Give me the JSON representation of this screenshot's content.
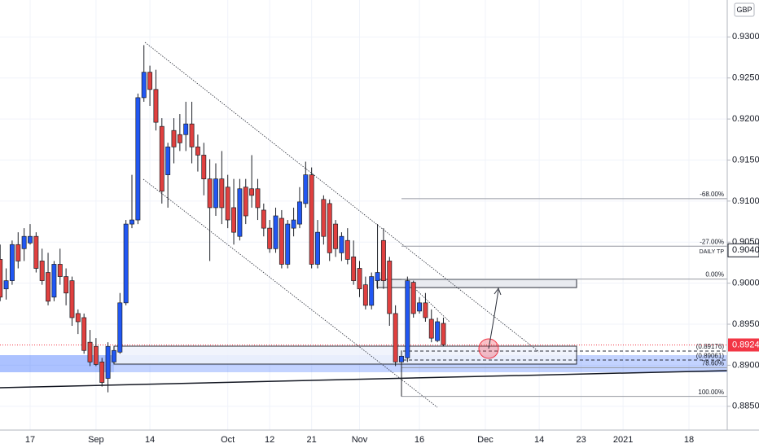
{
  "chart_data": {
    "type": "candlestick",
    "currency": "GBP",
    "up_color": "#2157f3",
    "down_color": "#e0403f",
    "grid": true,
    "ylim": [
      0.8821,
      0.9345
    ],
    "yticks": [
      {
        "value": 0.885,
        "label": "0.88500"
      },
      {
        "value": 0.89,
        "label": "0.89000"
      },
      {
        "value": 0.895,
        "label": "0.89500"
      },
      {
        "value": 0.9,
        "label": "0.90000"
      },
      {
        "value": 0.905,
        "label": "0.90500"
      },
      {
        "value": 0.91,
        "label": "0.91000"
      },
      {
        "value": 0.915,
        "label": "0.91500"
      },
      {
        "value": 0.92,
        "label": "0.92000"
      },
      {
        "value": 0.925,
        "label": "0.92500"
      },
      {
        "value": 0.93,
        "label": "0.93000"
      }
    ],
    "categories": [
      null,
      null,
      null,
      null,
      null,
      "17",
      null,
      null,
      null,
      null,
      null,
      null,
      null,
      null,
      null,
      null,
      "Sep",
      null,
      null,
      null,
      null,
      null,
      null,
      null,
      null,
      "14",
      null,
      null,
      null,
      null,
      null,
      null,
      null,
      null,
      null,
      null,
      null,
      null,
      "Oct",
      null,
      null,
      null,
      null,
      null,
      null,
      "12",
      null,
      null,
      null,
      null,
      null,
      null,
      "21",
      null,
      null,
      null,
      null,
      null,
      null,
      null,
      "Nov",
      null,
      null,
      null,
      null,
      null,
      null,
      null,
      null,
      null,
      "16",
      null,
      null,
      null,
      null,
      null,
      null,
      null,
      null,
      null,
      null,
      "Dec",
      null,
      null,
      null,
      null,
      null,
      null,
      null,
      null,
      "14",
      null,
      null,
      null,
      null,
      null,
      null,
      "23",
      null,
      null,
      null,
      null,
      null,
      null,
      "2021",
      null,
      null,
      null,
      null,
      null,
      null,
      null,
      null,
      null,
      null,
      "18",
      null,
      null,
      null,
      null,
      null
    ],
    "open": [
      0.9029,
      0.8993,
      0.9003,
      0.9047,
      0.9042,
      0.9049,
      0.9057,
      0.9027,
      0.9013,
      0.8983,
      0.9023,
      0.9008,
      0.9003,
      0.8963,
      0.8958,
      0.8928,
      0.8923,
      0.8904,
      0.8884,
      0.8904,
      0.8916,
      0.8976,
      0.9072,
      0.9077,
      0.9226,
      0.9257,
      0.9236,
      0.9191,
      0.9132,
      0.9186,
      0.9181,
      0.9181,
      0.9194,
      0.9166,
      0.9156,
      0.9127,
      0.9092,
      0.9127,
      0.9117,
      0.9092,
      0.9057,
      0.9117,
      0.9115,
      0.9115,
      0.9089,
      0.9067,
      0.9042,
      0.9079,
      0.9023,
      0.9067,
      0.9072,
      0.9097,
      0.9132,
      0.9023,
      0.9102,
      0.9097,
      0.9072,
      0.9037,
      0.9052,
      0.9032,
      0.9018,
      0.8998,
      0.8973,
      0.9003,
      0.9052,
      0.9027,
      0.8963,
      0.8904,
      0.8909,
      0.9001,
      0.8966,
      0.8976,
      0.8956,
      0.893,
      0.8951,
      null,
      null,
      null,
      null,
      null,
      null,
      null,
      null,
      null,
      null,
      null,
      null,
      null,
      null,
      null,
      null,
      null,
      null,
      null,
      null,
      null,
      null,
      null,
      null,
      null,
      null,
      null,
      null,
      null,
      null,
      null,
      null,
      null,
      null,
      null,
      null,
      null,
      null,
      null,
      null,
      null,
      null,
      null,
      null,
      null,
      null
    ],
    "high": [
      0.9047,
      0.9018,
      0.9052,
      0.9062,
      0.9067,
      0.9072,
      0.9062,
      0.9042,
      0.9037,
      0.9027,
      0.9042,
      0.9018,
      0.9008,
      0.8968,
      0.8963,
      0.8943,
      0.8933,
      0.8909,
      0.8928,
      0.8923,
      0.8988,
      0.9077,
      0.9132,
      0.9231,
      0.929,
      0.9265,
      0.926,
      0.9201,
      0.9171,
      0.9201,
      0.9206,
      0.9221,
      0.9221,
      0.9181,
      0.9171,
      0.9151,
      0.9146,
      0.9161,
      0.9132,
      0.9127,
      0.9127,
      0.9127,
      0.9156,
      0.9127,
      0.9097,
      0.9077,
      0.9092,
      0.9089,
      0.9077,
      0.9092,
      0.9117,
      0.9148,
      0.9141,
      0.9077,
      0.9107,
      0.9102,
      0.9077,
      0.9062,
      0.9067,
      0.9052,
      0.9027,
      0.9008,
      0.9013,
      0.9072,
      0.9067,
      0.9032,
      0.8973,
      0.8918,
      0.9008,
      0.9003,
      0.8983,
      0.8988,
      0.8968,
      0.8958,
      0.8958,
      null,
      null,
      null,
      null,
      null,
      null,
      null,
      null,
      null,
      null,
      null,
      null,
      null,
      null,
      null,
      null,
      null,
      null,
      null,
      null,
      null,
      null,
      null,
      null,
      null,
      null,
      null,
      null,
      null,
      null,
      null,
      null,
      null,
      null,
      null,
      null,
      null,
      null,
      null,
      null,
      null,
      null,
      null,
      null,
      null,
      null
    ],
    "low": [
      0.8978,
      0.898,
      0.8998,
      0.9018,
      0.9027,
      0.9047,
      0.9013,
      0.8998,
      0.8973,
      0.8978,
      0.8998,
      0.8973,
      0.8948,
      0.8938,
      0.8914,
      0.8899,
      0.8899,
      0.8874,
      0.8867,
      0.8901,
      0.8914,
      0.8973,
      0.9067,
      0.9072,
      0.9221,
      0.9216,
      0.9186,
      0.9097,
      0.9092,
      0.9146,
      0.9161,
      0.9161,
      0.9146,
      0.9136,
      0.9107,
      0.9027,
      0.9082,
      0.9072,
      0.9067,
      0.9047,
      0.9052,
      0.9072,
      0.9092,
      0.9077,
      0.9057,
      0.9037,
      0.9037,
      0.9018,
      0.9018,
      0.9057,
      0.9067,
      0.9092,
      0.9018,
      0.9018,
      0.9047,
      0.9027,
      0.9032,
      0.9027,
      0.9023,
      0.8998,
      0.8983,
      0.8968,
      0.8968,
      0.8993,
      0.8993,
      0.8948,
      0.8899,
      0.8862,
      0.8904,
      0.8958,
      0.8963,
      0.8953,
      0.8928,
      0.8928,
      0.8923,
      null,
      null,
      null,
      null,
      null,
      null,
      null,
      null,
      null,
      null,
      null,
      null,
      null,
      null,
      null,
      null,
      null,
      null,
      null,
      null,
      null,
      null,
      null,
      null,
      null,
      null,
      null,
      null,
      null,
      null,
      null,
      null,
      null,
      null,
      null,
      null,
      null,
      null,
      null,
      null,
      null,
      null,
      null,
      null,
      null,
      null
    ],
    "close": [
      0.8983,
      0.9003,
      0.9047,
      0.9027,
      0.9057,
      0.9057,
      0.9018,
      0.9003,
      0.8978,
      0.9023,
      0.9008,
      0.8988,
      0.8958,
      0.8953,
      0.8918,
      0.8904,
      0.8901,
      0.8879,
      0.8923,
      0.8918,
      0.8976,
      0.9072,
      0.9077,
      0.9226,
      0.9257,
      0.9236,
      0.9196,
      0.9112,
      0.9166,
      0.9166,
      0.9171,
      0.9194,
      0.9166,
      0.9156,
      0.9127,
      0.9092,
      0.9127,
      0.9092,
      0.9077,
      0.9062,
      0.9115,
      0.9082,
      0.9107,
      0.9092,
      0.9067,
      0.9042,
      0.9082,
      0.9023,
      0.9072,
      0.9077,
      0.9099,
      0.9132,
      0.9023,
      0.9062,
      0.9057,
      0.9037,
      0.9042,
      0.9057,
      0.9029,
      0.9003,
      0.8993,
      0.8973,
      0.9008,
      0.9013,
      0.9003,
      0.8963,
      0.8904,
      0.8911,
      0.9003,
      0.8963,
      0.8976,
      0.8958,
      0.8933,
      0.8953,
      0.8925,
      null,
      null,
      null,
      null,
      null,
      null,
      null,
      null,
      null,
      null,
      null,
      null,
      null,
      null,
      null,
      null,
      null,
      null,
      null,
      null,
      null,
      null,
      null,
      null,
      null,
      null,
      null,
      null,
      null,
      null,
      null,
      null,
      null,
      null,
      null,
      null,
      null,
      null,
      null,
      null,
      null,
      null,
      null,
      null,
      null,
      null
    ],
    "levels": [
      {
        "label": "-68.00%",
        "value": 0.9103
      },
      {
        "label": "-27.00%",
        "value": 0.9045
      },
      {
        "label": "0.00%",
        "value": 0.9005
      },
      {
        "label": "(0.89176)",
        "value": 0.89176
      },
      {
        "label": "(0.89061)",
        "value": 0.89061
      },
      {
        "label": "78.60%",
        "value": 0.8897
      },
      {
        "label": "100.00%",
        "value": 0.8862
      }
    ],
    "price_markers": [
      {
        "value": 0.904,
        "label": "0.90400",
        "tag": "DAILY TP"
      }
    ],
    "last_price": {
      "value": 0.89247,
      "label": "0.89247"
    }
  }
}
